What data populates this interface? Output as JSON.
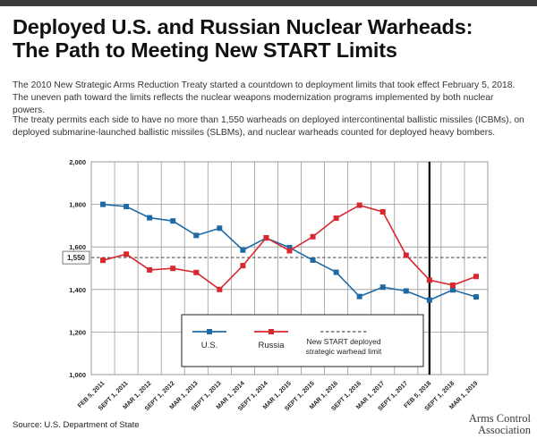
{
  "header": {
    "title_line1": "Deployed U.S. and Russian Nuclear Warheads:",
    "title_line2": "The Path to Meeting New START Limits",
    "paragraph1_line1": "The 2010 New Strategic Arms Reduction Treaty started a countdown to deployment limits that took effect February 5, 2018.",
    "paragraph1_line2": "The uneven path toward the limits reflects the nuclear weapons modernization programs implemented by both nuclear powers.",
    "paragraph2_line1": "The treaty permits each side to have no more than 1,550 warheads on deployed intercontinental ballistic missiles (ICBMs), on",
    "paragraph2_line2": "deployed submarine-launched ballistic missiles (SLBMs), and nuclear warheads counted for deployed heavy bombers."
  },
  "footer": {
    "source": "Source: U.S. Department of State",
    "logo_line1": "Arms Control",
    "logo_line2": "Association"
  },
  "chart_data": {
    "type": "line",
    "categories": [
      "FEB 5, 2011",
      "SEPT 1, 2011",
      "MAR 1, 2012",
      "SEPT 1, 2012",
      "MAR 1, 2013",
      "SEPT 1, 2013",
      "MAR 1, 2014",
      "SEPT 1, 2014",
      "MAR 1, 2015",
      "SEPT 1, 2015",
      "MAR 1, 2016",
      "SEPT 1, 2016",
      "MAR 1, 2017",
      "SEPT 1, 2017",
      "FEB 5, 2018",
      "SEPT 1, 2018",
      "MAR 1, 2019"
    ],
    "series": [
      {
        "name": "U.S.",
        "color": "#1f6aa5",
        "values": [
          1800,
          1790,
          1737,
          1722,
          1654,
          1688,
          1585,
          1642,
          1597,
          1538,
          1481,
          1367,
          1411,
          1393,
          1350,
          1398,
          1365
        ]
      },
      {
        "name": "Russia",
        "color": "#d7282f",
        "values": [
          1537,
          1566,
          1492,
          1499,
          1480,
          1400,
          1512,
          1643,
          1582,
          1648,
          1735,
          1796,
          1765,
          1561,
          1444,
          1420,
          1461
        ]
      }
    ],
    "limit": {
      "name": "New START deployed strategic warhead limit",
      "value": 1550,
      "label": "1,550"
    },
    "yticks": [
      "1,000",
      "1,200",
      "1,400",
      "1,600",
      "1,800",
      "2,000"
    ],
    "ylim": [
      1000,
      2000
    ],
    "marker_category": "FEB 5, 2018",
    "grid": true,
    "legend_position": "bottom-center"
  }
}
